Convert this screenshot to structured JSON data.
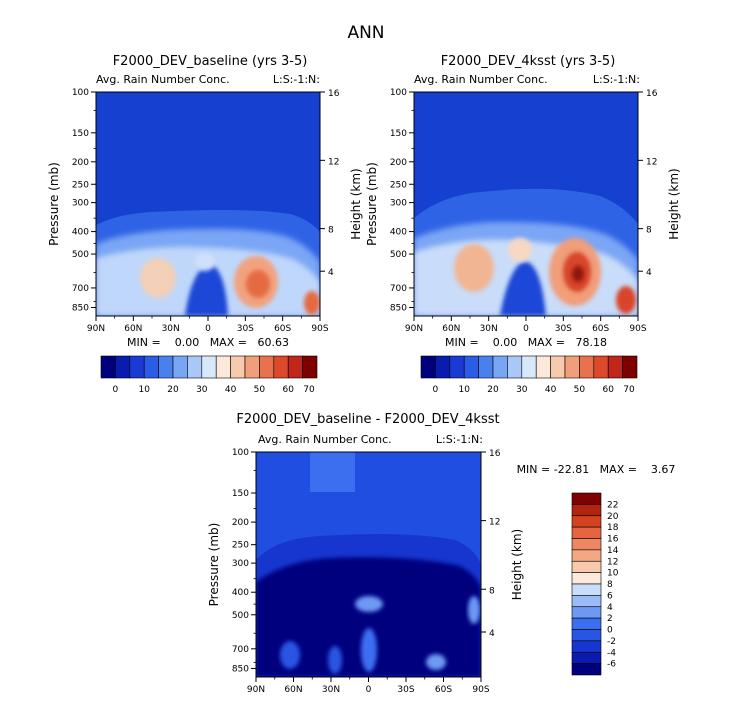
{
  "page_title": "ANN",
  "colors": {
    "abs_scale": [
      "#00007f",
      "#0a1bb0",
      "#1a3ad6",
      "#2b5ce6",
      "#4a7ff0",
      "#78a5f5",
      "#a8c8f8",
      "#d8e8fb",
      "#fbe9dc",
      "#f7c9ad",
      "#f19e7a",
      "#e9724e",
      "#dc4a2b",
      "#c1261a",
      "#7f0000"
    ],
    "diff_scale": [
      "#00007f",
      "#0a1bb0",
      "#1636cf",
      "#2a55e2",
      "#3c6ef0",
      "#6d98f3",
      "#9bbcf6",
      "#c9dcf9",
      "#fbe9dc",
      "#f7c9ad",
      "#f3a884",
      "#ee8660",
      "#e66440",
      "#d4421f",
      "#b3230f",
      "#7f0000"
    ]
  },
  "panels": {
    "baseline": {
      "title": "F2000_DEV_baseline (yrs 3-5)",
      "left_label": "Avg. Rain Number Conc.",
      "right_label": "L:S:-1:N:",
      "min_max": "MIN =    0.00   MAX =   60.63"
    },
    "ksst": {
      "title": "F2000_DEV_4ksst (yrs 3-5)",
      "left_label": "Avg. Rain Number Conc.",
      "right_label": "L:S:-1:N:",
      "min_max": "MIN =    0.00   MAX =   78.18"
    },
    "diff": {
      "title": "F2000_DEV_baseline - F2000_DEV_4ksst",
      "left_label": "Avg. Rain Number Conc.",
      "right_label": "L:S:-1:N:",
      "min_max": "MIN = -22.81   MAX =    3.67"
    }
  },
  "chart_data": [
    {
      "type": "heatmap",
      "title": "F2000_DEV_baseline (yrs 3-5)",
      "xlabel": "",
      "ylabel": "Pressure (mb)",
      "y2label": "Height (km)",
      "x_ticks": [
        "90N",
        "60N",
        "30N",
        "0",
        "30S",
        "60S",
        "90S"
      ],
      "x_tick_values": [
        90,
        60,
        30,
        0,
        -30,
        -60,
        -90
      ],
      "y_ticks": [
        "100",
        "150",
        "200",
        "250",
        "300",
        "400",
        "500",
        "700",
        "850"
      ],
      "y_tick_values": [
        100,
        150,
        200,
        250,
        300,
        400,
        500,
        700,
        850
      ],
      "y2_ticks": [
        "16",
        "12",
        "8",
        "4"
      ],
      "ylim": [
        100,
        925
      ],
      "xlim": [
        90,
        -90
      ],
      "value_min": 0.0,
      "value_max": 60.63,
      "colorbar": {
        "ticks": [
          "0",
          "10",
          "20",
          "30",
          "40",
          "50",
          "60",
          "70"
        ],
        "levels": [
          -5,
          0,
          5,
          10,
          15,
          20,
          25,
          30,
          35,
          40,
          45,
          50,
          55,
          60,
          65,
          70
        ]
      },
      "features": [
        {
          "lat": 38,
          "p": 640,
          "value": 32
        },
        {
          "lat": 10,
          "p": 560,
          "value": 24
        },
        {
          "lat": -38,
          "p": 650,
          "value": 55
        },
        {
          "lat": -50,
          "p": 680,
          "value": 42
        },
        {
          "lat": -80,
          "p": 830,
          "value": 50
        },
        {
          "lat": -62,
          "p": 560,
          "value": 20
        }
      ]
    },
    {
      "type": "heatmap",
      "title": "F2000_DEV_4ksst (yrs 3-5)",
      "xlabel": "",
      "ylabel": "Pressure (mb)",
      "y2label": "Height (km)",
      "x_ticks": [
        "90N",
        "60N",
        "30N",
        "0",
        "30S",
        "60S",
        "90S"
      ],
      "x_tick_values": [
        90,
        60,
        30,
        0,
        -30,
        -60,
        -90
      ],
      "y_ticks": [
        "100",
        "150",
        "200",
        "250",
        "300",
        "400",
        "500",
        "700",
        "850"
      ],
      "y_tick_values": [
        100,
        150,
        200,
        250,
        300,
        400,
        500,
        700,
        850
      ],
      "y2_ticks": [
        "16",
        "12",
        "8",
        "4"
      ],
      "ylim": [
        100,
        925
      ],
      "xlim": [
        90,
        -90
      ],
      "value_min": 0.0,
      "value_max": 78.18,
      "colorbar": {
        "ticks": [
          "0",
          "10",
          "20",
          "30",
          "40",
          "50",
          "60",
          "70"
        ],
        "levels": [
          -5,
          0,
          5,
          10,
          15,
          20,
          25,
          30,
          35,
          40,
          45,
          50,
          55,
          60,
          65,
          70
        ]
      },
      "features": [
        {
          "lat": 36,
          "p": 620,
          "value": 45
        },
        {
          "lat": 8,
          "p": 540,
          "value": 30
        },
        {
          "lat": -38,
          "p": 620,
          "value": 72
        },
        {
          "lat": -50,
          "p": 650,
          "value": 55
        },
        {
          "lat": -78,
          "p": 820,
          "value": 62
        },
        {
          "lat": -62,
          "p": 520,
          "value": 28
        }
      ]
    },
    {
      "type": "heatmap",
      "title": "F2000_DEV_baseline - F2000_DEV_4ksst",
      "xlabel": "",
      "ylabel": "Pressure (mb)",
      "y2label": "Height (km)",
      "x_ticks": [
        "90N",
        "60N",
        "30N",
        "0",
        "30S",
        "60S",
        "90S"
      ],
      "x_tick_values": [
        90,
        60,
        30,
        0,
        -30,
        -60,
        -90
      ],
      "y_ticks": [
        "100",
        "150",
        "200",
        "250",
        "300",
        "400",
        "500",
        "700",
        "850"
      ],
      "y_tick_values": [
        100,
        150,
        200,
        250,
        300,
        400,
        500,
        700,
        850
      ],
      "y2_ticks": [
        "16",
        "12",
        "8",
        "4"
      ],
      "ylim": [
        100,
        925
      ],
      "xlim": [
        90,
        -90
      ],
      "value_min": -22.81,
      "value_max": 3.67,
      "colorbar": {
        "ticks": [
          "22",
          "20",
          "18",
          "16",
          "14",
          "12",
          "10",
          "8",
          "6",
          "4",
          "2",
          "0",
          "-2",
          "-4",
          "-6"
        ],
        "levels": [
          -8,
          -6,
          -4,
          -2,
          0,
          2,
          4,
          6,
          8,
          10,
          12,
          14,
          16,
          18,
          20,
          22
        ]
      },
      "features": [
        {
          "lat": 0,
          "p": 460,
          "value": -1
        },
        {
          "lat": 0,
          "p": 720,
          "value": -2
        },
        {
          "lat": 25,
          "p": 780,
          "value": -3
        },
        {
          "lat": -45,
          "p": 840,
          "value": -2
        },
        {
          "lat": -75,
          "p": 430,
          "value": -1
        }
      ]
    }
  ]
}
